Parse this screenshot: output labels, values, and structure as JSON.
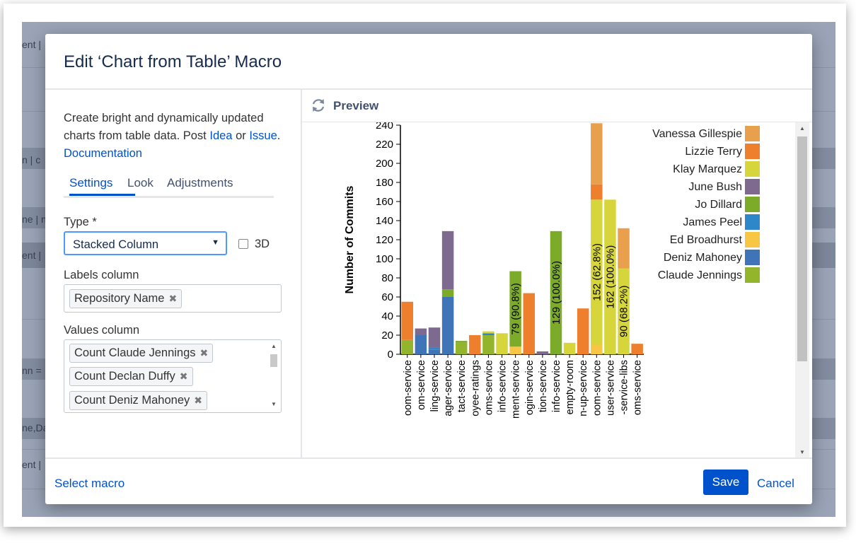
{
  "background": {
    "fragments": [
      "ent |",
      "n | c",
      "ne | n",
      "ent |",
      "nn =",
      "ne,Da",
      "ent |"
    ]
  },
  "dialog": {
    "title": "Edit ‘Chart from Table’ Macro",
    "description": {
      "text1": "Create bright and dynamically updated charts from table data. Post ",
      "idea_link": "Idea",
      "text2": " or ",
      "issue_link": "Issue",
      "text3": ". ",
      "doc_link": "Documentation"
    },
    "tabs": [
      "Settings",
      "Look",
      "Adjustments"
    ],
    "type_label": "Type *",
    "type_value": "Stacked Column",
    "three_d_label": "3D",
    "labels_column_label": "Labels column",
    "labels_chips": [
      "Repository Name"
    ],
    "values_column_label": "Values column",
    "values_chips": [
      "Count Claude Jennings",
      "Count Declan Duffy",
      "Count Deniz Mahoney"
    ],
    "preview_label": "Preview",
    "footer": {
      "select_macro": "Select macro",
      "save": "Save",
      "cancel": "Cancel"
    }
  },
  "chart_data": {
    "type": "bar",
    "stacked": true,
    "ylabel": "Number of Commits",
    "ylim": [
      0,
      240
    ],
    "yticks": [
      0,
      20,
      40,
      60,
      80,
      100,
      120,
      140,
      160,
      180,
      200,
      220,
      240
    ],
    "categories": [
      "oom-service",
      "om-service",
      "ling-service",
      "ager-service",
      "tact-service",
      "oyee-ratings",
      "oms-service",
      "info-service",
      "ment-service",
      "ogin-service",
      "tion-service",
      "info-service",
      "empty-room",
      "n-up-service",
      "oom-service",
      "user-service",
      "-service-libs",
      "oms-service"
    ],
    "legend_position": "right",
    "colors": {
      "Vanessa Gillespie": "#e8a04c",
      "Lizzie Terry": "#ee7f2d",
      "Klay Marquez": "#d6d63c",
      "June Bush": "#7d6a8e",
      "Jo Dillard": "#7cab2a",
      "James Peel": "#2d87c8",
      "Ed Broadhurst": "#f7c645",
      "Deniz Mahoney": "#3f74b8",
      "Claude Jennings": "#92b52c"
    },
    "legend": [
      "Vanessa Gillespie",
      "Lizzie Terry",
      "Klay Marquez",
      "June Bush",
      "Jo Dillard",
      "James Peel",
      "Ed Broadhurst",
      "Deniz Mahoney",
      "Claude Jennings"
    ],
    "series": [
      {
        "name": "Claude Jennings",
        "values": [
          15,
          0,
          0,
          0,
          12,
          0,
          20,
          0,
          0,
          0,
          0,
          0,
          0,
          0,
          0,
          0,
          0,
          0
        ]
      },
      {
        "name": "Deniz Mahoney",
        "values": [
          0,
          20,
          5,
          60,
          0,
          0,
          0,
          0,
          0,
          0,
          0,
          0,
          0,
          0,
          0,
          0,
          0,
          0
        ]
      },
      {
        "name": "Ed Broadhurst",
        "values": [
          0,
          0,
          0,
          0,
          0,
          0,
          0,
          0,
          8,
          0,
          0,
          0,
          0,
          0,
          10,
          0,
          0,
          0
        ]
      },
      {
        "name": "James Peel",
        "values": [
          0,
          0,
          2,
          0,
          0,
          0,
          2,
          0,
          0,
          0,
          0,
          0,
          0,
          0,
          0,
          0,
          0,
          0
        ]
      },
      {
        "name": "Jo Dillard",
        "values": [
          0,
          0,
          0,
          8,
          2,
          0,
          0,
          0,
          79,
          0,
          0,
          129,
          0,
          0,
          0,
          0,
          0,
          0
        ]
      },
      {
        "name": "June Bush",
        "values": [
          0,
          7,
          21,
          61,
          0,
          0,
          0,
          0,
          0,
          0,
          3,
          0,
          0,
          0,
          0,
          0,
          0,
          0
        ]
      },
      {
        "name": "Klay Marquez",
        "values": [
          0,
          0,
          0,
          0,
          0,
          0,
          2,
          22,
          0,
          0,
          0,
          0,
          12,
          0,
          152,
          162,
          90,
          0
        ]
      },
      {
        "name": "Lizzie Terry",
        "values": [
          40,
          0,
          0,
          0,
          0,
          20,
          0,
          0,
          0,
          64,
          0,
          0,
          0,
          48,
          16,
          0,
          0,
          11
        ]
      },
      {
        "name": "Vanessa Gillespie",
        "values": [
          0,
          0,
          0,
          0,
          0,
          0,
          0,
          0,
          0,
          0,
          0,
          0,
          0,
          0,
          64,
          0,
          42,
          0
        ]
      }
    ],
    "annotations": [
      {
        "category_index": 8,
        "series": "Jo Dillard",
        "text": "79 (90.8%)"
      },
      {
        "category_index": 11,
        "series": "Jo Dillard",
        "text": "129 (100.0%)"
      },
      {
        "category_index": 14,
        "series": "Klay Marquez",
        "text": "152 (62.8%)"
      },
      {
        "category_index": 15,
        "series": "Klay Marquez",
        "text": "162 (100.0%)"
      },
      {
        "category_index": 16,
        "series": "Klay Marquez",
        "text": "90 (68.2%)"
      }
    ]
  }
}
